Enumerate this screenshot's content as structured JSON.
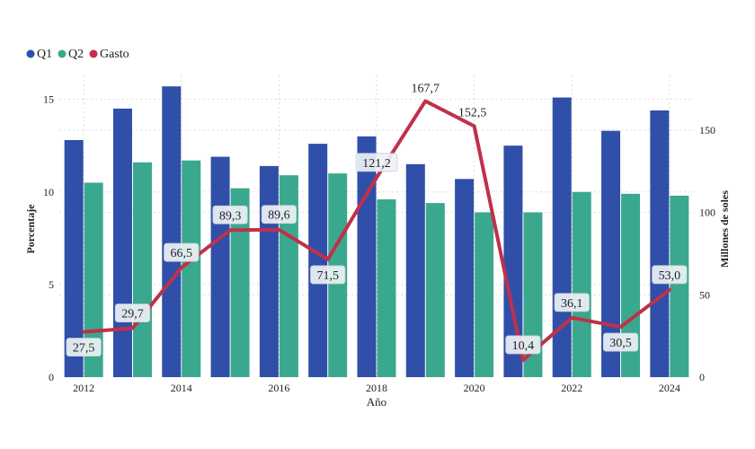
{
  "chart_data": {
    "type": "bar",
    "categories": [
      "2012",
      "2013",
      "2014",
      "2015",
      "2016",
      "2017",
      "2018",
      "2019",
      "2020",
      "2021",
      "2022",
      "2023",
      "2024"
    ],
    "x_tick_labels": [
      "2012",
      "2014",
      "2016",
      "2018",
      "2020",
      "2022",
      "2024"
    ],
    "series": [
      {
        "name": "Q1",
        "type": "bar",
        "axis": "left",
        "color": "#2f4fa8",
        "values": [
          12.8,
          14.5,
          15.7,
          11.9,
          11.4,
          12.6,
          13.0,
          11.5,
          10.7,
          12.5,
          15.1,
          13.3,
          14.4
        ]
      },
      {
        "name": "Q2",
        "type": "bar",
        "axis": "left",
        "color": "#3aa88e",
        "values": [
          10.5,
          11.6,
          11.7,
          10.2,
          10.9,
          11.0,
          9.6,
          9.4,
          8.9,
          8.9,
          10.0,
          9.9,
          9.8
        ]
      },
      {
        "name": "Gasto",
        "type": "line",
        "axis": "right",
        "color": "#c0304a",
        "values": [
          27.5,
          29.7,
          66.5,
          89.3,
          89.6,
          71.5,
          121.2,
          167.7,
          152.5,
          10.4,
          36.1,
          30.5,
          53.0
        ],
        "labels": [
          "27,5",
          "29,7",
          "66,5",
          "89,3",
          "89,6",
          "71,5",
          "121,2",
          "167,7",
          "152,5",
          "10,4",
          "36,1",
          "30,5",
          "53,0"
        ]
      }
    ],
    "xlabel": "Año",
    "ylabel": "Porcentaje",
    "y2label": "Millones de soles",
    "ylim": [
      0,
      16
    ],
    "yticks": [
      0,
      5,
      10,
      15
    ],
    "y2lim": [
      0,
      180
    ],
    "y2ticks": [
      0,
      50,
      100,
      150
    ],
    "grid": true,
    "legend": "top-left"
  }
}
